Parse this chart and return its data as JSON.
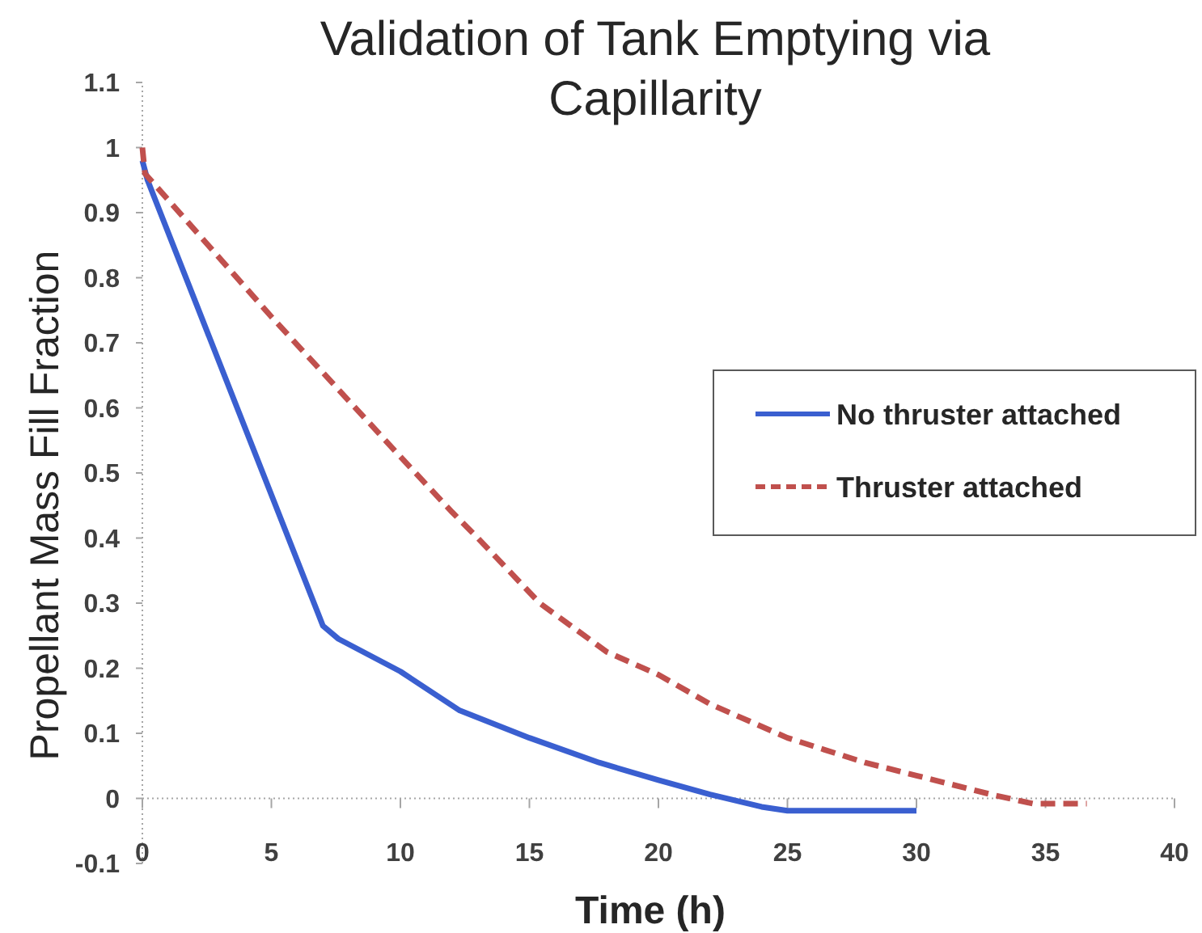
{
  "chart_data": {
    "type": "line",
    "title": "Validation of Tank Emptying via Capillarity",
    "xlabel": "Time (h)",
    "ylabel": "Propellant Mass Fill Fraction",
    "xlim": [
      0,
      40
    ],
    "xticks": [
      0,
      5,
      10,
      15,
      20,
      25,
      30,
      35,
      40
    ],
    "ylim": [
      -0.1,
      1.1
    ],
    "yticks": [
      -0.1,
      0,
      0.1,
      0.2,
      0.3,
      0.4,
      0.5,
      0.6,
      0.7,
      0.8,
      0.9,
      1,
      1.1
    ],
    "legend": "right",
    "series": [
      {
        "name": "No thruster attached",
        "color": "#3a5fd0",
        "line_style": "solid",
        "x": [
          0,
          0.2,
          7,
          7.6,
          10,
          12.3,
          15,
          17.7,
          20,
          22,
          24,
          25,
          30
        ],
        "values": [
          0.98,
          0.95,
          0.265,
          0.245,
          0.195,
          0.135,
          0.093,
          0.055,
          0.028,
          0.006,
          -0.013,
          -0.019,
          -0.019
        ]
      },
      {
        "name": "Thruster attached",
        "color": "#c0504d",
        "line_style": "dashed",
        "x": [
          0,
          0.1,
          5,
          10,
          12,
          13,
          15.4,
          18,
          20,
          22,
          25,
          28,
          30,
          33,
          34.5,
          36.6
        ],
        "values": [
          1.0,
          0.96,
          0.74,
          0.525,
          0.44,
          0.4,
          0.3,
          0.225,
          0.19,
          0.145,
          0.093,
          0.055,
          0.035,
          0.005,
          -0.008,
          -0.008
        ]
      }
    ]
  }
}
